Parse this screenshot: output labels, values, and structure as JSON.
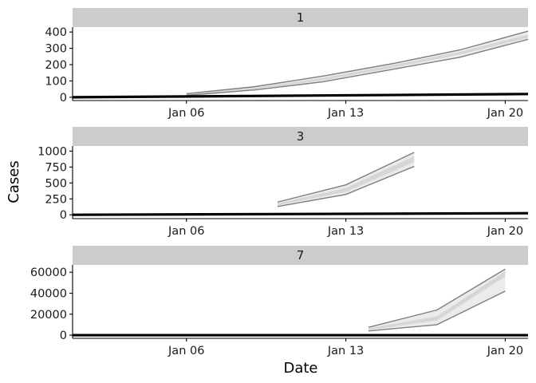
{
  "chart_data": {
    "type": "line",
    "facet_layout": "stacked-rows",
    "xlabel": "Date",
    "ylabel": "Cases",
    "x_ticks": [
      {
        "date": "2020-01-06",
        "label": "Jan 06"
      },
      {
        "date": "2020-01-13",
        "label": "Jan 13"
      },
      {
        "date": "2020-01-20",
        "label": "Jan 20"
      }
    ],
    "xlim": [
      "2020-01-01",
      "2020-01-21"
    ],
    "colors": {
      "strip": "#cccccc",
      "ribbon_outer": "#ebebeb",
      "ribbon_inner": "#d6d6d6",
      "band_line": "#7f7f7f",
      "observed_line": "#000000",
      "axis": "#000000"
    },
    "grid": false,
    "panels": [
      {
        "label": "1",
        "ylim": [
          -20,
          430
        ],
        "y_ticks": [
          {
            "v": 0,
            "label": "0"
          },
          {
            "v": 100,
            "label": "100"
          },
          {
            "v": 200,
            "label": "200"
          },
          {
            "v": 300,
            "label": "300"
          },
          {
            "v": 400,
            "label": "400"
          }
        ],
        "observed": [
          {
            "date": "2020-01-01",
            "y": 0
          },
          {
            "date": "2020-01-21",
            "y": 20
          }
        ],
        "band_dates": [
          "2020-01-06",
          "2020-01-09",
          "2020-01-12",
          "2020-01-15",
          "2020-01-18",
          "2020-01-21"
        ],
        "band_outer_lo": [
          12,
          45,
          95,
          170,
          245,
          355
        ],
        "band_outer_hi": [
          22,
          65,
          130,
          205,
          290,
          405
        ],
        "band_inner_lo": [
          15,
          50,
          105,
          180,
          262,
          365
        ],
        "band_inner_hi": [
          20,
          58,
          118,
          195,
          278,
          385
        ]
      },
      {
        "label": "3",
        "ylim": [
          -60,
          1080
        ],
        "y_ticks": [
          {
            "v": 0,
            "label": "0"
          },
          {
            "v": 250,
            "label": "250"
          },
          {
            "v": 500,
            "label": "500"
          },
          {
            "v": 750,
            "label": "750"
          },
          {
            "v": 1000,
            "label": "1000"
          }
        ],
        "observed": [
          {
            "date": "2020-01-01",
            "y": 0
          },
          {
            "date": "2020-01-21",
            "y": 25
          }
        ],
        "band_dates": [
          "2020-01-10",
          "2020-01-13",
          "2020-01-16"
        ],
        "band_outer_lo": [
          130,
          320,
          760
        ],
        "band_outer_hi": [
          200,
          470,
          980
        ],
        "band_inner_lo": [
          150,
          360,
          830
        ],
        "band_inner_hi": [
          180,
          420,
          920
        ]
      },
      {
        "label": "7",
        "ylim": [
          -3000,
          67000
        ],
        "y_ticks": [
          {
            "v": 0,
            "label": "0"
          },
          {
            "v": 20000,
            "label": "20000"
          },
          {
            "v": 40000,
            "label": "40000"
          },
          {
            "v": 60000,
            "label": "60000"
          }
        ],
        "observed": [
          {
            "date": "2020-01-01",
            "y": 0
          },
          {
            "date": "2020-01-21",
            "y": 0
          }
        ],
        "band_dates": [
          "2020-01-14",
          "2020-01-17",
          "2020-01-20"
        ],
        "band_outer_lo": [
          4000,
          10000,
          42000
        ],
        "band_outer_hi": [
          7500,
          24000,
          63000
        ],
        "band_inner_lo": [
          5000,
          14000,
          56000
        ],
        "band_inner_hi": [
          6500,
          18000,
          61000
        ]
      }
    ]
  }
}
